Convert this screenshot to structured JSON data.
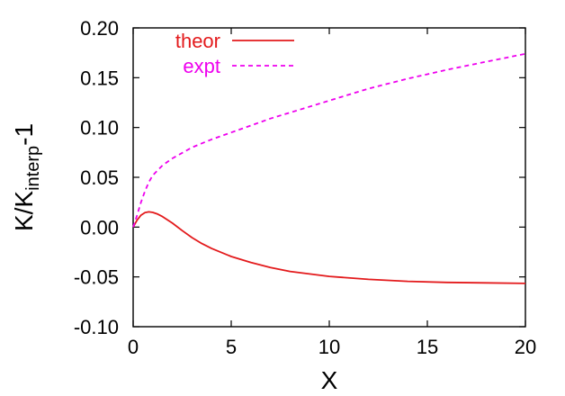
{
  "chart_data": {
    "type": "line",
    "xlabel": "X",
    "ylabel": {
      "main": "K/K",
      "subscript": "interp",
      "suffix": "-1"
    },
    "xlim": [
      0,
      20
    ],
    "ylim": [
      -0.1,
      0.2
    ],
    "xticks": [
      0,
      5,
      10,
      15,
      20
    ],
    "xtick_labels": [
      "0",
      "5",
      "10",
      "15",
      "20"
    ],
    "yticks": [
      -0.1,
      -0.05,
      0,
      0.05,
      0.1,
      0.15,
      0.2
    ],
    "ytick_labels": [
      "-0.10",
      "-0.05",
      "0.00",
      "0.05",
      "0.10",
      "0.15",
      "0.20"
    ],
    "grid": false,
    "legend": "top-left",
    "series": [
      {
        "name": "theor",
        "color": "#e31a1c",
        "style": "solid",
        "x": [
          0,
          0.2,
          0.4,
          0.6,
          0.8,
          1.0,
          1.25,
          1.5,
          2.0,
          2.5,
          3.0,
          3.5,
          4.0,
          5.0,
          6.0,
          7.0,
          8.0,
          10.0,
          12.0,
          14.0,
          16.0,
          18.0,
          20.0
        ],
        "y": [
          0.0,
          0.007,
          0.012,
          0.0145,
          0.0153,
          0.0148,
          0.013,
          0.0105,
          0.004,
          -0.0035,
          -0.0105,
          -0.0165,
          -0.0215,
          -0.0295,
          -0.0355,
          -0.0405,
          -0.0445,
          -0.0495,
          -0.0525,
          -0.0545,
          -0.0555,
          -0.056,
          -0.0565
        ]
      },
      {
        "name": "expt",
        "color": "#ee00ee",
        "style": "dashed",
        "x": [
          0,
          0.2,
          0.4,
          0.6,
          0.8,
          1.0,
          1.5,
          2.0,
          3.0,
          4.0,
          5.0,
          6.0,
          7.0,
          8.0,
          10.0,
          12.0,
          14.0,
          16.0,
          18.0,
          20.0
        ],
        "y": [
          0.0,
          0.012,
          0.025,
          0.036,
          0.045,
          0.052,
          0.062,
          0.069,
          0.08,
          0.088,
          0.095,
          0.102,
          0.109,
          0.115,
          0.127,
          0.139,
          0.149,
          0.158,
          0.166,
          0.174
        ]
      }
    ]
  }
}
